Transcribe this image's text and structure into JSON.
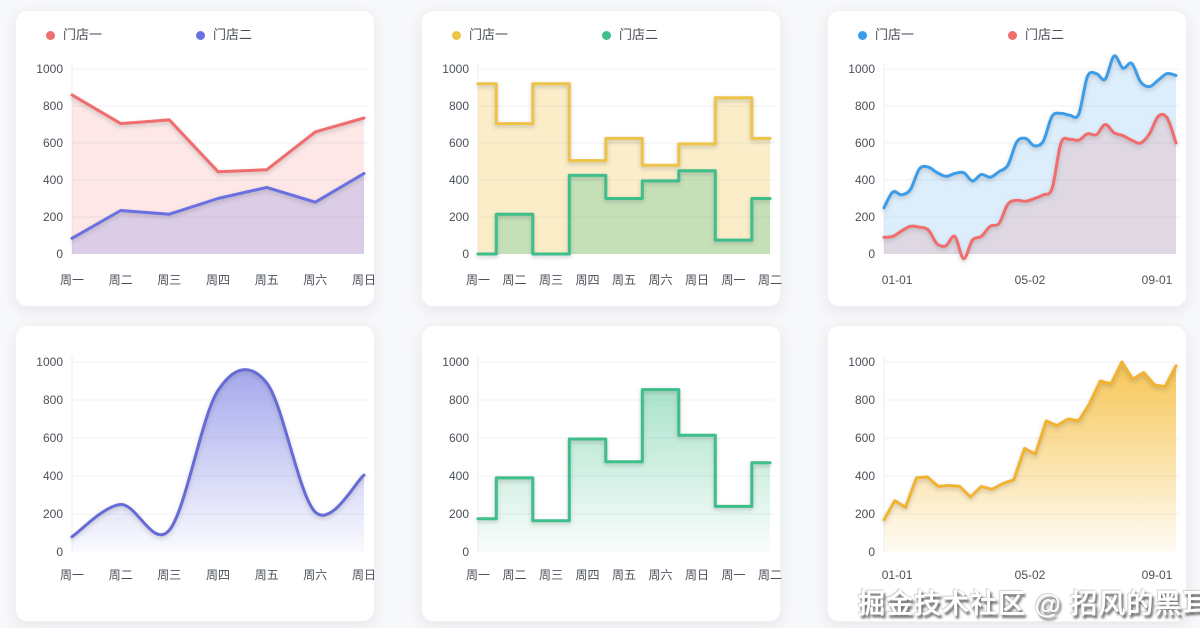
{
  "watermark": "掘金技术社区 @ 招风的黑耳",
  "palette": {
    "red": "#f16c6c",
    "purple": "#6a70e2",
    "yellow": "#eec34a",
    "green": "#3dbe8b",
    "blue": "#3b9de9",
    "orange": "#f2b331",
    "grid_line": "#f0f1f4",
    "axis_line": "#eceef2",
    "tick_text": "#4b5058",
    "legend_text": "#4a4f57",
    "card_bg": "#ffffff",
    "page_bg": "#f7f8fa"
  },
  "chart_data": [
    {
      "type": "area",
      "line_style": "straight",
      "title": "",
      "categories": [
        "周一",
        "周二",
        "周三",
        "周四",
        "周五",
        "周六",
        "周日"
      ],
      "yticks": [
        0,
        200,
        400,
        600,
        800,
        1000
      ],
      "ylim": [
        0,
        1000
      ],
      "legend_position": "top",
      "series": [
        {
          "name": "门店一",
          "color": "#f16c6c",
          "fill": {
            "type": "solid",
            "color": "rgba(241,108,108,0.16)"
          },
          "values": [
            860,
            705,
            725,
            445,
            455,
            660,
            735
          ]
        },
        {
          "name": "门店二",
          "color": "#6a70e2",
          "fill": {
            "type": "solid",
            "color": "rgba(106,112,226,0.22)"
          },
          "values": [
            85,
            235,
            215,
            300,
            360,
            280,
            435
          ]
        }
      ]
    },
    {
      "type": "area",
      "line_style": "step-middle",
      "title": "",
      "categories": [
        "周一",
        "周二",
        "周三",
        "周四",
        "周五",
        "周六",
        "周日",
        "周一",
        "周二"
      ],
      "yticks": [
        0,
        200,
        400,
        600,
        800,
        1000
      ],
      "ylim": [
        0,
        1000
      ],
      "legend_position": "top",
      "series": [
        {
          "name": "门店一",
          "color": "#eec34a",
          "fill": {
            "type": "solid",
            "color": "rgba(238,195,74,0.30)"
          },
          "values": [
            920,
            705,
            920,
            505,
            625,
            480,
            595,
            845,
            625
          ]
        },
        {
          "name": "门店二",
          "color": "#3dbe8b",
          "fill": {
            "type": "solid",
            "color": "rgba(61,190,139,0.28)"
          },
          "values": [
            0,
            215,
            0,
            425,
            300,
            395,
            450,
            75,
            300
          ]
        }
      ]
    },
    {
      "type": "area",
      "line_style": "smooth",
      "title": "",
      "x_labels": [
        "01-01",
        "05-02",
        "09-01"
      ],
      "yticks": [
        0,
        200,
        400,
        600,
        800,
        1000
      ],
      "ylim": [
        0,
        1000
      ],
      "legend_position": "top",
      "series": [
        {
          "name": "门店一",
          "color": "#3b9de9",
          "fill": {
            "type": "solid",
            "color": "rgba(59,157,233,0.18)"
          },
          "values": [
            250,
            335,
            320,
            350,
            460,
            470,
            440,
            420,
            435,
            440,
            395,
            430,
            415,
            445,
            480,
            605,
            625,
            585,
            610,
            745,
            760,
            750,
            755,
            960,
            975,
            945,
            1070,
            1005,
            1030,
            930,
            905,
            940,
            975,
            965
          ]
        },
        {
          "name": "门店二",
          "color": "#f16c6c",
          "fill": {
            "type": "solid",
            "color": "rgba(241,108,108,0.16)"
          },
          "values": [
            90,
            95,
            125,
            150,
            145,
            130,
            55,
            45,
            95,
            -25,
            75,
            95,
            150,
            165,
            270,
            290,
            285,
            300,
            320,
            355,
            600,
            620,
            615,
            650,
            645,
            700,
            655,
            640,
            615,
            600,
            650,
            745,
            735,
            600
          ]
        }
      ]
    },
    {
      "type": "area",
      "line_style": "smooth",
      "title": "",
      "categories": [
        "周一",
        "周二",
        "周三",
        "周四",
        "周五",
        "周六",
        "周日"
      ],
      "yticks": [
        0,
        200,
        400,
        600,
        800,
        1000
      ],
      "ylim": [
        0,
        1000
      ],
      "legend_position": "none",
      "series": [
        {
          "color": "#666bd8",
          "fill": {
            "type": "gradient",
            "from": "rgba(104,110,224,0.62)",
            "to": "rgba(104,110,224,0.03)"
          },
          "values": [
            80,
            250,
            115,
            850,
            890,
            210,
            405
          ]
        }
      ]
    },
    {
      "type": "area",
      "line_style": "step-middle",
      "title": "",
      "categories": [
        "周一",
        "周二",
        "周三",
        "周四",
        "周五",
        "周六",
        "周日",
        "周一",
        "周二"
      ],
      "yticks": [
        0,
        200,
        400,
        600,
        800,
        1000
      ],
      "ylim": [
        0,
        1000
      ],
      "legend_position": "none",
      "series": [
        {
          "color": "#3dbe8b",
          "fill": {
            "type": "gradient",
            "from": "rgba(61,190,139,0.50)",
            "to": "rgba(61,190,139,0.03)"
          },
          "values": [
            175,
            390,
            165,
            595,
            475,
            855,
            615,
            240,
            470
          ]
        }
      ]
    },
    {
      "type": "area",
      "line_style": "straight",
      "title": "",
      "x_labels": [
        "01-01",
        "05-02",
        "09-01"
      ],
      "yticks": [
        0,
        200,
        400,
        600,
        800,
        1000
      ],
      "ylim": [
        0,
        1000
      ],
      "legend_position": "none",
      "series": [
        {
          "color": "#f2b331",
          "fill": {
            "type": "gradient",
            "from": "rgba(246,190,61,0.88)",
            "to": "rgba(246,190,61,0.05)"
          },
          "values": [
            170,
            270,
            235,
            390,
            395,
            345,
            350,
            345,
            290,
            345,
            330,
            360,
            380,
            545,
            515,
            690,
            665,
            700,
            690,
            780,
            900,
            885,
            1000,
            910,
            945,
            880,
            870,
            980
          ]
        }
      ]
    }
  ]
}
